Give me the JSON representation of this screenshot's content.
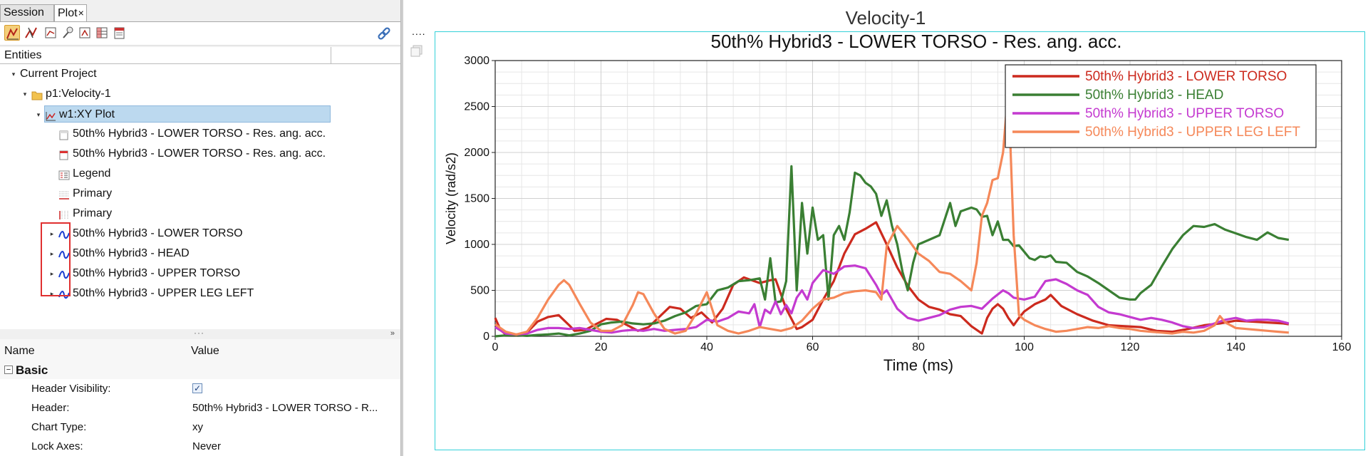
{
  "tabs": {
    "session": "Session",
    "plot": "Plot",
    "close": "×"
  },
  "entities_header": "Entities",
  "tree": {
    "current_project": "Current Project",
    "page": "p1:Velocity-1",
    "window": "w1:XY Plot",
    "header_item": "50th% Hybrid3   - LOWER TORSO - Res. ang. acc.",
    "footer_item": "50th% Hybrid3   - LOWER TORSO - Res. ang. acc.",
    "legend": "Legend",
    "axis_x": "Primary",
    "axis_y": "Primary",
    "curves": [
      "50th% Hybrid3   - LOWER TORSO",
      "50th% Hybrid3   - HEAD",
      "50th% Hybrid3   - UPPER TORSO",
      "50th% Hybrid3   - UPPER LEG LEFT"
    ]
  },
  "props": {
    "col_name": "Name",
    "col_value": "Value",
    "group": "Basic",
    "rows": [
      {
        "key": "Header Visibility:",
        "value": ""
      },
      {
        "key": "Header:",
        "value": "50th% Hybrid3   - LOWER TORSO - R..."
      },
      {
        "key": "Chart Type:",
        "value": "xy"
      },
      {
        "key": "Lock Axes:",
        "value": "Never"
      }
    ]
  },
  "window_title": "Velocity-1",
  "more": "....",
  "colors": {
    "lower_torso": "#cc2a1e",
    "head": "#3a7f33",
    "upper_torso": "#c43ad0",
    "upper_leg_left": "#f58859",
    "frame": "#33d1d9",
    "selection": "#bcd9ef"
  },
  "chart_data": {
    "type": "line",
    "title": "50th% Hybrid3   - LOWER TORSO - Res. ang. acc.",
    "xlabel": "Time (ms)",
    "ylabel": "Velocity (rad/s2)",
    "xlim": [
      0,
      160
    ],
    "ylim": [
      0,
      3000
    ],
    "xticks": [
      0,
      20,
      40,
      60,
      80,
      100,
      120,
      140,
      160
    ],
    "yticks": [
      0,
      500,
      1000,
      1500,
      2000,
      2500,
      3000
    ],
    "grid": true,
    "legend_position": "top-right",
    "series": [
      {
        "name": "50th% Hybrid3   - LOWER TORSO",
        "color": "#cc2a1e",
        "x": [
          0,
          1,
          2,
          4,
          6,
          8,
          10,
          12,
          14,
          15,
          17,
          19,
          21,
          23,
          25,
          27,
          29,
          31,
          33,
          35,
          37,
          39,
          41,
          43,
          45,
          47,
          48,
          50,
          52,
          53,
          55,
          57,
          58,
          60,
          62,
          64,
          66,
          68,
          70,
          72,
          74,
          76,
          78,
          80,
          82,
          84,
          86,
          88,
          90,
          92,
          93,
          94,
          95,
          96,
          97,
          98,
          99,
          100,
          102,
          104,
          105,
          107,
          110,
          113,
          116,
          119,
          122,
          125,
          128,
          131,
          134,
          137,
          140,
          143,
          146,
          149,
          150
        ],
        "y": [
          200,
          70,
          20,
          10,
          40,
          160,
          210,
          230,
          120,
          60,
          70,
          130,
          190,
          180,
          120,
          60,
          100,
          210,
          320,
          300,
          200,
          260,
          150,
          300,
          560,
          640,
          620,
          580,
          610,
          620,
          300,
          80,
          100,
          180,
          400,
          600,
          900,
          1110,
          1170,
          1240,
          1000,
          750,
          550,
          400,
          320,
          290,
          240,
          220,
          110,
          30,
          200,
          300,
          350,
          300,
          200,
          120,
          200,
          270,
          350,
          400,
          450,
          330,
          240,
          170,
          120,
          110,
          100,
          60,
          50,
          80,
          120,
          140,
          170,
          160,
          150,
          140,
          130
        ]
      },
      {
        "name": "50th% Hybrid3   - HEAD",
        "color": "#3a7f33",
        "x": [
          0,
          2,
          4,
          6,
          8,
          10,
          12,
          14,
          16,
          18,
          20,
          22,
          24,
          26,
          28,
          30,
          32,
          34,
          36,
          38,
          40,
          42,
          44,
          46,
          48,
          50,
          51,
          52,
          53,
          54,
          55,
          56,
          57,
          58,
          59,
          60,
          61,
          62,
          63,
          64,
          65,
          66,
          67,
          68,
          69,
          70,
          71,
          72,
          73,
          74,
          75,
          76,
          77,
          78,
          79,
          80,
          82,
          84,
          86,
          87,
          88,
          89,
          90,
          91,
          92,
          93,
          94,
          95,
          96,
          97,
          98,
          99,
          100,
          101,
          102,
          103,
          104,
          105,
          106,
          108,
          110,
          112,
          114,
          116,
          118,
          120,
          121,
          122,
          124,
          126,
          128,
          130,
          132,
          134,
          136,
          137,
          138,
          140,
          142,
          144,
          146,
          148,
          150
        ],
        "y": [
          0,
          10,
          15,
          5,
          15,
          20,
          30,
          10,
          30,
          60,
          130,
          150,
          160,
          140,
          130,
          140,
          170,
          220,
          260,
          330,
          350,
          500,
          530,
          600,
          610,
          630,
          400,
          850,
          370,
          380,
          600,
          1850,
          500,
          1450,
          900,
          1400,
          1050,
          1100,
          400,
          1100,
          1200,
          1050,
          1350,
          1780,
          1750,
          1670,
          1630,
          1550,
          1310,
          1480,
          1200,
          1000,
          700,
          500,
          800,
          1000,
          1050,
          1100,
          1450,
          1200,
          1360,
          1380,
          1400,
          1380,
          1300,
          1310,
          1100,
          1250,
          1050,
          1050,
          980,
          990,
          920,
          850,
          830,
          870,
          860,
          880,
          810,
          800,
          700,
          650,
          580,
          500,
          420,
          400,
          400,
          470,
          560,
          760,
          950,
          1100,
          1200,
          1190,
          1220,
          1190,
          1160,
          1120,
          1080,
          1050,
          1130,
          1070,
          1050
        ]
      },
      {
        "name": "50th% Hybrid3   - UPPER TORSO",
        "color": "#c43ad0",
        "x": [
          0,
          2,
          4,
          6,
          8,
          10,
          12,
          14,
          16,
          18,
          20,
          22,
          24,
          26,
          28,
          30,
          32,
          34,
          36,
          38,
          40,
          42,
          44,
          46,
          48,
          49,
          50,
          51,
          52,
          53,
          54,
          55,
          56,
          57,
          58,
          59,
          60,
          62,
          64,
          66,
          68,
          70,
          72,
          73,
          74,
          76,
          78,
          80,
          82,
          84,
          86,
          88,
          90,
          92,
          94,
          96,
          97,
          98,
          100,
          102,
          104,
          106,
          108,
          110,
          112,
          114,
          116,
          118,
          120,
          122,
          124,
          126,
          128,
          130,
          132,
          134,
          136,
          138,
          140,
          142,
          144,
          146,
          148,
          150
        ],
        "y": [
          100,
          30,
          20,
          30,
          70,
          90,
          90,
          80,
          90,
          70,
          50,
          40,
          60,
          70,
          60,
          80,
          60,
          70,
          80,
          100,
          180,
          160,
          200,
          270,
          250,
          350,
          100,
          290,
          250,
          380,
          240,
          340,
          250,
          420,
          500,
          400,
          580,
          720,
          680,
          760,
          770,
          740,
          560,
          450,
          500,
          300,
          200,
          170,
          200,
          230,
          290,
          320,
          330,
          300,
          410,
          500,
          470,
          420,
          400,
          430,
          600,
          620,
          570,
          500,
          450,
          320,
          260,
          240,
          210,
          180,
          200,
          180,
          150,
          110,
          90,
          100,
          140,
          180,
          200,
          170,
          180,
          180,
          170,
          140
        ]
      },
      {
        "name": "50th% Hybrid3   - UPPER LEG LEFT",
        "color": "#f58859",
        "x": [
          0,
          2,
          4,
          6,
          8,
          10,
          12,
          13,
          14,
          16,
          18,
          20,
          22,
          24,
          26,
          27,
          28,
          30,
          32,
          34,
          36,
          38,
          40,
          41,
          42,
          44,
          46,
          48,
          50,
          52,
          54,
          56,
          58,
          60,
          62,
          64,
          66,
          68,
          70,
          72,
          73,
          74,
          76,
          78,
          80,
          82,
          84,
          86,
          88,
          90,
          91,
          92,
          93,
          94,
          95,
          96,
          97,
          98,
          99,
          100,
          102,
          104,
          106,
          108,
          110,
          112,
          114,
          116,
          118,
          120,
          122,
          124,
          126,
          128,
          130,
          132,
          134,
          136,
          137,
          138,
          140,
          142,
          144,
          146,
          148,
          150
        ],
        "y": [
          130,
          50,
          20,
          50,
          200,
          400,
          560,
          610,
          560,
          350,
          150,
          60,
          60,
          120,
          340,
          480,
          460,
          250,
          80,
          30,
          60,
          250,
          480,
          300,
          120,
          60,
          30,
          60,
          100,
          80,
          60,
          90,
          170,
          300,
          400,
          420,
          470,
          490,
          500,
          480,
          400,
          980,
          1200,
          1060,
          900,
          820,
          700,
          680,
          600,
          500,
          800,
          1310,
          1450,
          1700,
          1720,
          2000,
          2700,
          1100,
          230,
          180,
          120,
          80,
          50,
          60,
          80,
          100,
          90,
          110,
          90,
          80,
          60,
          50,
          40,
          30,
          50,
          40,
          60,
          120,
          220,
          150,
          90,
          80,
          70,
          60,
          50,
          40
        ]
      }
    ]
  }
}
